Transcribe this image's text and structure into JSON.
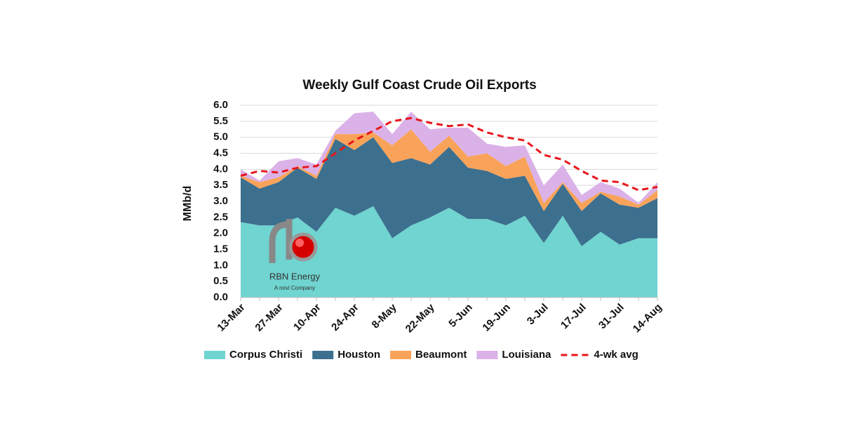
{
  "chart_data": {
    "type": "stacked_area",
    "title": "Weekly Gulf Coast Crude Oil Exports",
    "ylabel": "MMb/d",
    "categories": [
      "13-Mar",
      null,
      "27-Mar",
      null,
      "10-Apr",
      null,
      "24-Apr",
      null,
      "8-May",
      null,
      "22-May",
      null,
      "5-Jun",
      null,
      "19-Jun",
      null,
      "3-Jul",
      null,
      "17-Jul",
      null,
      "31-Jul",
      null,
      "14-Aug"
    ],
    "series": [
      {
        "name": "Corpus Christi",
        "color": "#70d4d0",
        "values": [
          2.35,
          2.25,
          2.25,
          2.5,
          2.05,
          2.8,
          2.55,
          2.85,
          1.85,
          2.25,
          2.5,
          2.8,
          2.45,
          2.45,
          2.25,
          2.55,
          1.7,
          2.55,
          1.6,
          2.05,
          1.65,
          1.85,
          1.85
        ]
      },
      {
        "name": "Houston",
        "color": "#3d6f8e",
        "values": [
          1.4,
          1.15,
          1.35,
          1.55,
          1.65,
          2.15,
          2.05,
          2.15,
          2.35,
          2.1,
          1.65,
          1.9,
          1.6,
          1.5,
          1.45,
          1.25,
          1.0,
          1.0,
          1.1,
          1.2,
          1.25,
          0.95,
          1.25
        ]
      },
      {
        "name": "Beaumont",
        "color": "#f9a35a",
        "values": [
          0.05,
          0.2,
          0.15,
          0.05,
          0.1,
          0.15,
          0.5,
          0.15,
          0.55,
          0.9,
          0.4,
          0.35,
          0.35,
          0.55,
          0.4,
          0.6,
          0.25,
          0.05,
          0.25,
          0.05,
          0.25,
          0.1,
          0.25
        ]
      },
      {
        "name": "Louisiana",
        "color": "#dbb2e8",
        "values": [
          0.2,
          0.05,
          0.5,
          0.25,
          0.35,
          0.1,
          0.65,
          0.65,
          0.35,
          0.55,
          0.7,
          0.25,
          0.9,
          0.3,
          0.6,
          0.35,
          0.55,
          0.55,
          0.25,
          0.3,
          0.25,
          0.05,
          0.25
        ]
      },
      {
        "name": "4-wk avg",
        "color": "#e8161b",
        "type": "line",
        "dashed": true,
        "values": [
          3.8,
          3.95,
          3.9,
          4.05,
          4.1,
          4.5,
          4.9,
          5.2,
          5.5,
          5.6,
          5.45,
          5.35,
          5.4,
          5.15,
          5.0,
          4.9,
          4.45,
          4.3,
          3.95,
          3.65,
          3.6,
          3.35,
          3.45
        ]
      }
    ],
    "ylim": [
      0,
      6
    ],
    "yticks": [
      {
        "value": 0,
        "label": "0.0"
      },
      0.5,
      {
        "value": 1,
        "label": "1.0"
      },
      1.5,
      {
        "value": 2,
        "label": "2.0"
      },
      2.5,
      {
        "value": 3,
        "label": "3.0"
      },
      3.5,
      {
        "value": 4,
        "label": "4.0"
      },
      4.5,
      {
        "value": 5,
        "label": "5.0"
      },
      5.5,
      {
        "value": 6,
        "label": "6.0"
      }
    ],
    "grid": true,
    "legend": "bottom",
    "logo": {
      "name": "RBN Energy",
      "tagline": "A novi Company"
    }
  }
}
